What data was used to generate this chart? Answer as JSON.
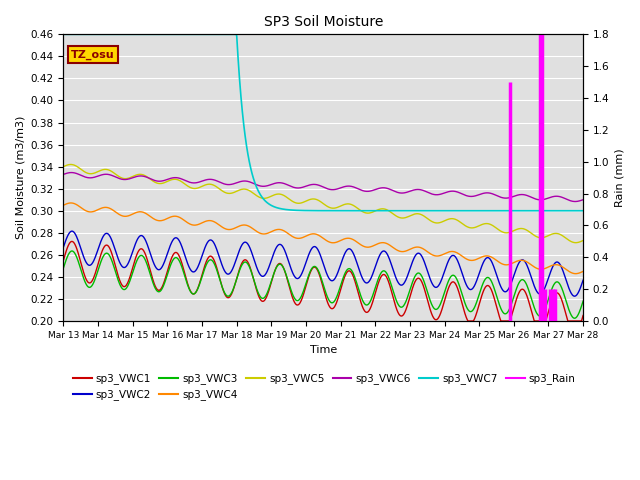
{
  "title": "SP3 Soil Moisture",
  "xlabel": "Time",
  "ylabel_left": "Soil Moisture (m3/m3)",
  "ylabel_right": "Rain (mm)",
  "ylim_left": [
    0.2,
    0.46
  ],
  "ylim_right": [
    0.0,
    1.8
  ],
  "yticks_left": [
    0.2,
    0.22,
    0.24,
    0.26,
    0.28,
    0.3,
    0.32,
    0.34,
    0.36,
    0.38,
    0.4,
    0.42,
    0.44,
    0.46
  ],
  "yticks_right": [
    0.0,
    0.2,
    0.4,
    0.6,
    0.8,
    1.0,
    1.2,
    1.4,
    1.6,
    1.8
  ],
  "tz_label": "TZ_osu",
  "tz_box_color": "#FFD700",
  "tz_text_color": "#8B0000",
  "background_color": "#E0E0E0",
  "colors": {
    "VWC1": "#CC0000",
    "VWC2": "#0000CC",
    "VWC3": "#00BB00",
    "VWC4": "#FF8800",
    "VWC5": "#CCCC00",
    "VWC6": "#AA00AA",
    "VWC7": "#00CCCC",
    "Rain": "#FF00FF"
  },
  "xtick_labels": [
    "Mar 13",
    "Mar 14",
    "Mar 15",
    "Mar 16",
    "Mar 17",
    "Mar 18",
    "Mar 19",
    "Mar 20",
    "Mar 21",
    "Mar 22",
    "Mar 23",
    "Mar 24",
    "Mar 25",
    "Mar 26",
    "Mar 27",
    "Mar 28"
  ],
  "legend_row1": [
    "sp3_VWC1",
    "sp3_VWC2",
    "sp3_VWC3",
    "sp3_VWC4",
    "sp3_VWC5",
    "sp3_VWC6"
  ],
  "legend_row2": [
    "sp3_VWC7",
    "sp3_Rain"
  ],
  "legend_colors_row1": [
    "#CC0000",
    "#0000CC",
    "#00BB00",
    "#FF8800",
    "#CCCC00",
    "#AA00AA"
  ],
  "legend_colors_row2": [
    "#00CCCC",
    "#FF00FF"
  ]
}
